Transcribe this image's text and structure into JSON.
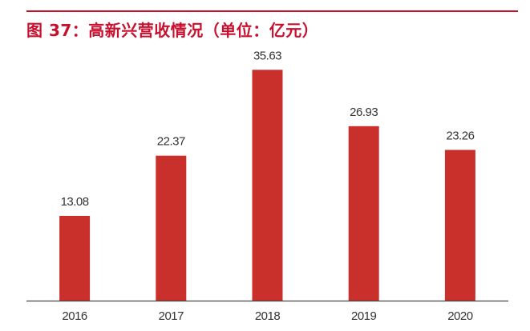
{
  "title": "图 37：高新兴营收情况（单位：亿元）",
  "colors": {
    "accent": "#c8102e",
    "bar": "#c9302c",
    "axis": "#444444",
    "text": "#333333"
  },
  "chart_data": {
    "type": "bar",
    "categories": [
      "2016",
      "2017",
      "2018",
      "2019",
      "2020"
    ],
    "values": [
      13.08,
      22.37,
      35.63,
      26.93,
      23.26
    ],
    "value_labels": [
      "13.08",
      "22.37",
      "35.63",
      "26.93",
      "23.26"
    ],
    "ylim": [
      0,
      38.5
    ],
    "grid": false,
    "legend": "none",
    "y_axis_visible": false
  }
}
